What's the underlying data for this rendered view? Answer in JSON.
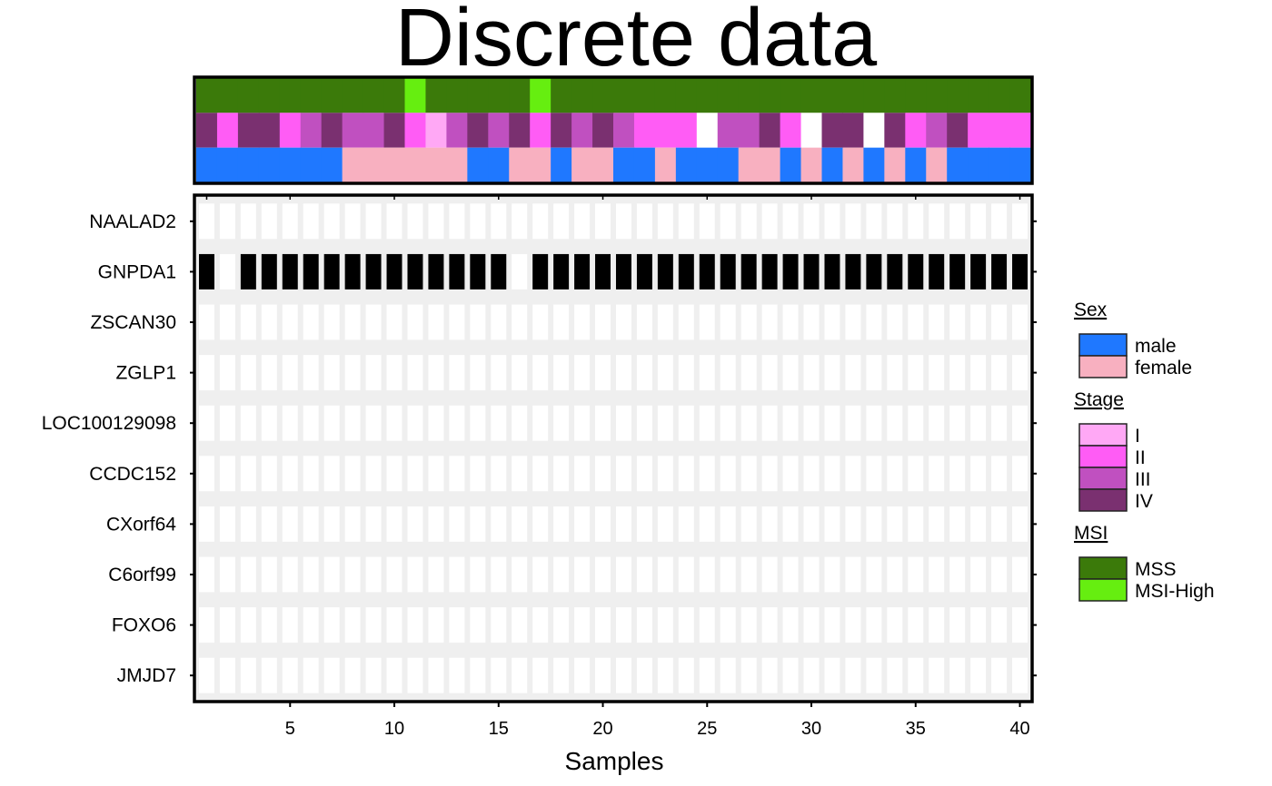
{
  "chart_data": {
    "type": "heatmap",
    "title": "Discrete data",
    "xlabel": "Samples",
    "x_ticks": [
      5,
      10,
      15,
      20,
      25,
      30,
      35,
      40
    ],
    "n_samples": 40,
    "genes": [
      "NAALAD2",
      "GNPDA1",
      "ZSCAN30",
      "ZGLP1",
      "LOC100129098",
      "CCDC152",
      "CXorf64",
      "C6orf99",
      "FOXO6",
      "JMJD7"
    ],
    "matrix": [
      [
        0,
        0,
        0,
        0,
        0,
        0,
        0,
        0,
        0,
        0,
        0,
        0,
        0,
        0,
        0,
        0,
        0,
        0,
        0,
        0,
        0,
        0,
        0,
        0,
        0,
        0,
        0,
        0,
        0,
        0,
        0,
        0,
        0,
        0,
        0,
        0,
        0,
        0,
        0,
        0
      ],
      [
        1,
        0,
        1,
        1,
        1,
        1,
        1,
        1,
        1,
        1,
        1,
        1,
        1,
        1,
        1,
        0,
        1,
        1,
        1,
        1,
        1,
        1,
        1,
        1,
        1,
        1,
        1,
        1,
        1,
        1,
        1,
        1,
        1,
        1,
        1,
        1,
        1,
        1,
        1,
        1
      ],
      [
        0,
        0,
        0,
        0,
        0,
        0,
        0,
        0,
        0,
        0,
        0,
        0,
        0,
        0,
        0,
        0,
        0,
        0,
        0,
        0,
        0,
        0,
        0,
        0,
        0,
        0,
        0,
        0,
        0,
        0,
        0,
        0,
        0,
        0,
        0,
        0,
        0,
        0,
        0,
        0
      ],
      [
        0,
        0,
        0,
        0,
        0,
        0,
        0,
        0,
        0,
        0,
        0,
        0,
        0,
        0,
        0,
        0,
        0,
        0,
        0,
        0,
        0,
        0,
        0,
        0,
        0,
        0,
        0,
        0,
        0,
        0,
        0,
        0,
        0,
        0,
        0,
        0,
        0,
        0,
        0,
        0
      ],
      [
        0,
        0,
        0,
        0,
        0,
        0,
        0,
        0,
        0,
        0,
        0,
        0,
        0,
        0,
        0,
        0,
        0,
        0,
        0,
        0,
        0,
        0,
        0,
        0,
        0,
        0,
        0,
        0,
        0,
        0,
        0,
        0,
        0,
        0,
        0,
        0,
        0,
        0,
        0,
        0
      ],
      [
        0,
        0,
        0,
        0,
        0,
        0,
        0,
        0,
        0,
        0,
        0,
        0,
        0,
        0,
        0,
        0,
        0,
        0,
        0,
        0,
        0,
        0,
        0,
        0,
        0,
        0,
        0,
        0,
        0,
        0,
        0,
        0,
        0,
        0,
        0,
        0,
        0,
        0,
        0,
        0
      ],
      [
        0,
        0,
        0,
        0,
        0,
        0,
        0,
        0,
        0,
        0,
        0,
        0,
        0,
        0,
        0,
        0,
        0,
        0,
        0,
        0,
        0,
        0,
        0,
        0,
        0,
        0,
        0,
        0,
        0,
        0,
        0,
        0,
        0,
        0,
        0,
        0,
        0,
        0,
        0,
        0
      ],
      [
        0,
        0,
        0,
        0,
        0,
        0,
        0,
        0,
        0,
        0,
        0,
        0,
        0,
        0,
        0,
        0,
        0,
        0,
        0,
        0,
        0,
        0,
        0,
        0,
        0,
        0,
        0,
        0,
        0,
        0,
        0,
        0,
        0,
        0,
        0,
        0,
        0,
        0,
        0,
        0
      ],
      [
        0,
        0,
        0,
        0,
        0,
        0,
        0,
        0,
        0,
        0,
        0,
        0,
        0,
        0,
        0,
        0,
        0,
        0,
        0,
        0,
        0,
        0,
        0,
        0,
        0,
        0,
        0,
        0,
        0,
        0,
        0,
        0,
        0,
        0,
        0,
        0,
        0,
        0,
        0,
        0
      ],
      [
        0,
        0,
        0,
        0,
        0,
        0,
        0,
        0,
        0,
        0,
        0,
        0,
        0,
        0,
        0,
        0,
        0,
        0,
        0,
        0,
        0,
        0,
        0,
        0,
        0,
        0,
        0,
        0,
        0,
        0,
        0,
        0,
        0,
        0,
        0,
        0,
        0,
        0,
        0,
        0
      ]
    ],
    "annotation_tracks": [
      {
        "name": "MSI",
        "values": [
          "MSS",
          "MSS",
          "MSS",
          "MSS",
          "MSS",
          "MSS",
          "MSS",
          "MSS",
          "MSS",
          "MSS",
          "MSI-High",
          "MSS",
          "MSS",
          "MSS",
          "MSS",
          "MSS",
          "MSI-High",
          "MSS",
          "MSS",
          "MSS",
          "MSS",
          "MSS",
          "MSS",
          "MSS",
          "MSS",
          "MSS",
          "MSS",
          "MSS",
          "MSS",
          "MSS",
          "MSS",
          "MSS",
          "MSS",
          "MSS",
          "MSS",
          "MSS",
          "MSS",
          "MSS",
          "MSS",
          "MSS"
        ]
      },
      {
        "name": "Stage",
        "values": [
          "IV",
          "II",
          "IV",
          "IV",
          "II",
          "III",
          "IV",
          "III",
          "III",
          "IV",
          "II",
          "I",
          "III",
          "IV",
          "III",
          "IV",
          "II",
          "IV",
          "III",
          "IV",
          "III",
          "II",
          "II",
          "II",
          "NA",
          "III",
          "III",
          "IV",
          "II",
          "NA",
          "IV",
          "IV",
          "NA",
          "IV",
          "II",
          "III",
          "IV",
          "II",
          "II",
          "II"
        ]
      },
      {
        "name": "Sex",
        "values": [
          "male",
          "male",
          "male",
          "male",
          "male",
          "male",
          "male",
          "female",
          "female",
          "female",
          "female",
          "female",
          "female",
          "male",
          "male",
          "female",
          "female",
          "male",
          "female",
          "female",
          "male",
          "male",
          "female",
          "male",
          "male",
          "male",
          "female",
          "female",
          "male",
          "female",
          "male",
          "female",
          "male",
          "female",
          "male",
          "female",
          "male",
          "male",
          "male",
          "male"
        ]
      }
    ],
    "legends": [
      {
        "title": "Sex",
        "items": [
          {
            "label": "male",
            "color": "#1f78ff"
          },
          {
            "label": "female",
            "color": "#f8b0c0"
          }
        ]
      },
      {
        "title": "Stage",
        "items": [
          {
            "label": "I",
            "color": "#ffa8f5"
          },
          {
            "label": "II",
            "color": "#ff5cf5"
          },
          {
            "label": "III",
            "color": "#c050c0"
          },
          {
            "label": "IV",
            "color": "#7a3070"
          }
        ]
      },
      {
        "title": "MSI",
        "items": [
          {
            "label": "MSS",
            "color": "#3b7a0a"
          },
          {
            "label": "MSI-High",
            "color": "#66ee10"
          }
        ]
      }
    ],
    "colors": {
      "present": "#000000",
      "absent": "#ffffff",
      "background": "#efefef",
      "missing": "#ffffff"
    }
  }
}
